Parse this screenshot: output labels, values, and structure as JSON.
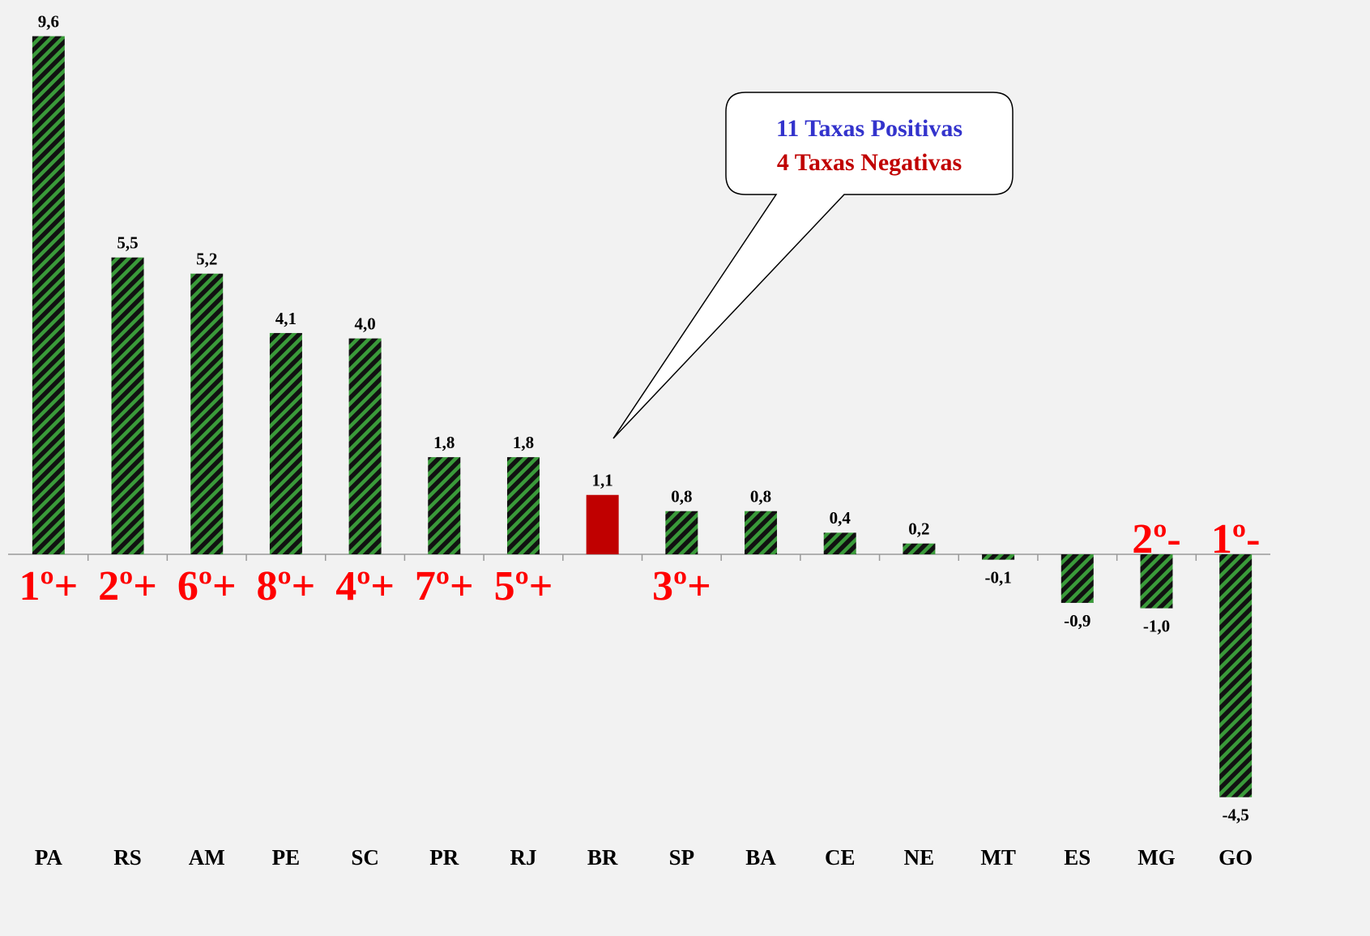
{
  "chart_data": {
    "type": "bar",
    "categories": [
      "PA",
      "RS",
      "AM",
      "PE",
      "SC",
      "PR",
      "RJ",
      "BR",
      "SP",
      "BA",
      "CE",
      "NE",
      "MT",
      "ES",
      "MG",
      "GO"
    ],
    "values": [
      9.6,
      5.5,
      5.2,
      4.1,
      4.0,
      1.8,
      1.8,
      1.1,
      0.8,
      0.8,
      0.4,
      0.2,
      -0.1,
      -0.9,
      -1.0,
      -4.5
    ],
    "value_labels": [
      "9,6",
      "5,5",
      "5,2",
      "4,1",
      "4,0",
      "1,8",
      "1,8",
      "1,1",
      "0,8",
      "0,8",
      "0,4",
      "0,2",
      "-0,1",
      "-0,9",
      "-1,0",
      "-4,5"
    ],
    "colors": [
      "#3a9a3a",
      "#3a9a3a",
      "#3a9a3a",
      "#3a9a3a",
      "#3a9a3a",
      "#3a9a3a",
      "#3a9a3a",
      "#c00000",
      "#3a9a3a",
      "#3a9a3a",
      "#3a9a3a",
      "#3a9a3a",
      "#3a9a3a",
      "#3a9a3a",
      "#3a9a3a",
      "#3a9a3a"
    ],
    "hatched": [
      true,
      true,
      true,
      true,
      true,
      true,
      true,
      false,
      true,
      true,
      true,
      true,
      true,
      true,
      true,
      true
    ],
    "rank_labels": [
      "1º+",
      "2º+",
      "6º+",
      "8º+",
      "4º+",
      "7º+",
      "5º+",
      null,
      "3º+",
      null,
      null,
      null,
      null,
      null,
      "2º-",
      "1º-"
    ],
    "ylim": [
      -5,
      10
    ],
    "callout": {
      "lines": [
        {
          "text": "11 Taxas Positivas",
          "color": "#3333cc"
        },
        {
          "text": "4 Taxas Negativas",
          "color": "#c00000"
        }
      ]
    }
  }
}
